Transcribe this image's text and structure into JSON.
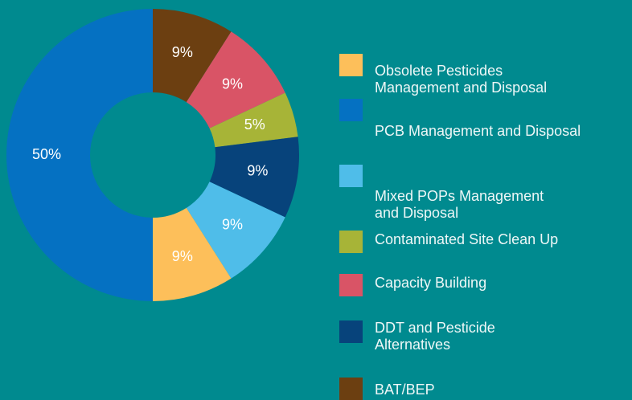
{
  "chart_data": {
    "type": "donut",
    "categories": [
      "Obsolete Pesticides\nManagement and Disposal",
      "PCB Management and Disposal",
      "Mixed POPs Management\nand Disposal",
      "Contaminated Site Clean Up",
      "Capacity Building",
      "DDT and Pesticide\nAlternatives",
      "BAT/BEP"
    ],
    "values": [
      9,
      50,
      9,
      5,
      9,
      9,
      9
    ],
    "colors": [
      "#fdbf5a",
      "#0571c2",
      "#4fbde9",
      "#a7b437",
      "#d95466",
      "#07437b",
      "#6c3f11"
    ],
    "legend": "right"
  }
}
